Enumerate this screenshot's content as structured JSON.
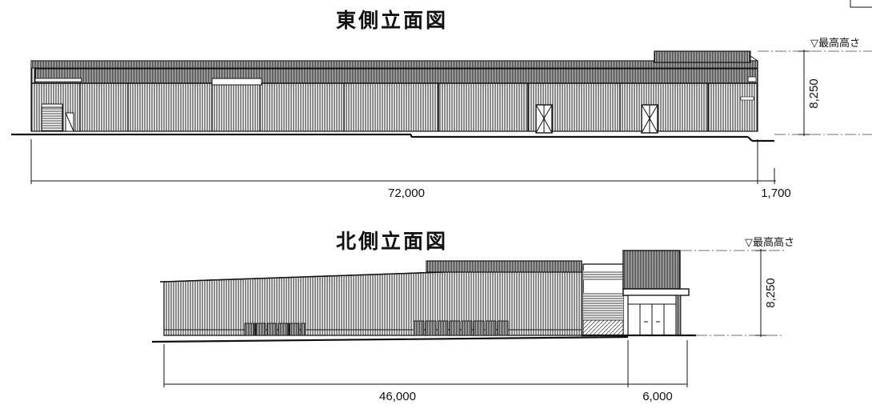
{
  "east": {
    "title": "東側立面図",
    "level_label": "▽最高高さ",
    "height_dim": "8,250",
    "width_dim": "72,000",
    "offset_dim": "1,700"
  },
  "north": {
    "title": "北側立面図",
    "level_label": "▽最高高さ",
    "height_dim": "8,250",
    "width_dim": "46,000",
    "offset_dim": "6,000"
  }
}
